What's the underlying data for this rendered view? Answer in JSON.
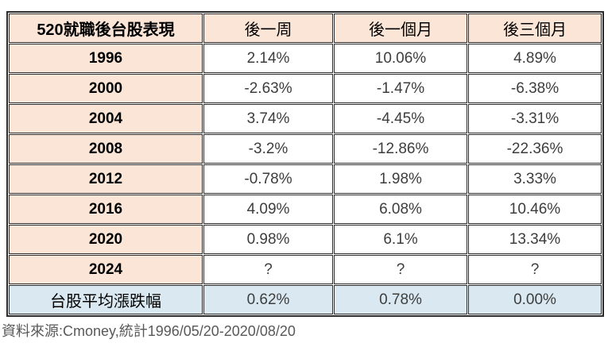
{
  "chart_data": {
    "type": "table",
    "title": "520就職後台股表現",
    "columns": [
      "520就職後台股表現",
      "後一周",
      "後一個月",
      "後三個月"
    ],
    "rows": [
      {
        "label": "1996",
        "values": [
          "2.14%",
          "10.06%",
          "4.89%"
        ]
      },
      {
        "label": "2000",
        "values": [
          "-2.63%",
          "-1.47%",
          "-6.38%"
        ]
      },
      {
        "label": "2004",
        "values": [
          "3.74%",
          "-4.45%",
          "-3.31%"
        ]
      },
      {
        "label": "2008",
        "values": [
          "-3.2%",
          "-12.86%",
          "-22.36%"
        ]
      },
      {
        "label": "2012",
        "values": [
          "-0.78%",
          "1.98%",
          "3.33%"
        ]
      },
      {
        "label": "2016",
        "values": [
          "4.09%",
          "6.08%",
          "10.46%"
        ]
      },
      {
        "label": "2020",
        "values": [
          "0.98%",
          "6.1%",
          "13.34%"
        ]
      },
      {
        "label": "2024",
        "values": [
          "?",
          "?",
          "?"
        ]
      }
    ],
    "summary_row": {
      "label": "台股平均漲跌幅",
      "values": [
        "0.62%",
        "0.78%",
        "0.00%"
      ]
    },
    "caption": "資料來源:Cmoney,統計1996/05/20-2020/08/20"
  },
  "colors": {
    "header_bg": "#FBE5D6",
    "summary_bg": "#DAE9F1",
    "border": "#2B2B2B",
    "value_text": "#3D3D3D",
    "label_text": "#000000",
    "caption_text": "#595959"
  }
}
